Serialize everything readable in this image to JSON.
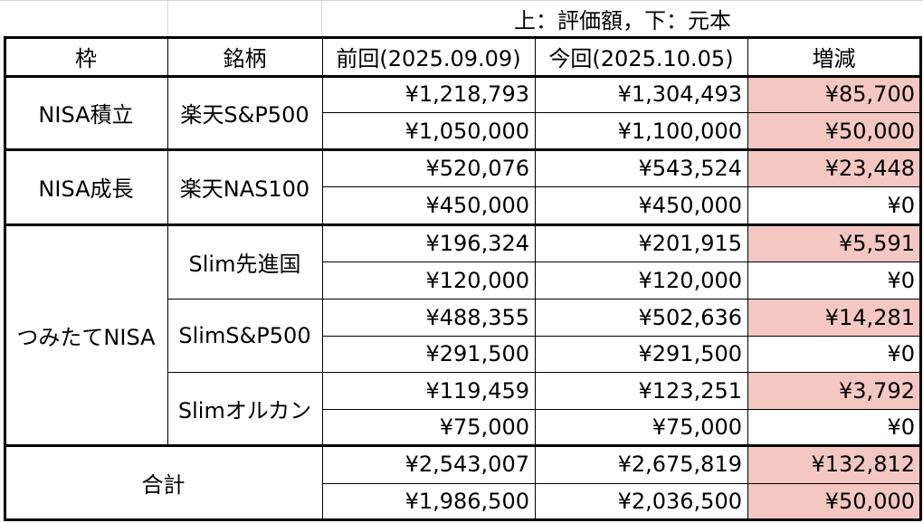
{
  "note": "上：評価額，下：元本",
  "headers": {
    "frame": "枠",
    "fund": "銘柄",
    "prev": "前回(2025.09.09)",
    "curr": "今回(2025.10.05)",
    "diff": "増減"
  },
  "colors": {
    "increase_fill": "#f4c7c3",
    "border": "#000000"
  },
  "groups": [
    {
      "frame": "NISA積立",
      "funds": [
        {
          "name": "楽天S&P500",
          "value": {
            "prev": "¥1,218,793",
            "curr": "¥1,304,493",
            "diff": "¥85,700"
          },
          "principal": {
            "prev": "¥1,050,000",
            "curr": "¥1,100,000",
            "diff": "¥50,000"
          }
        }
      ]
    },
    {
      "frame": "NISA成長",
      "funds": [
        {
          "name": "楽天NAS100",
          "value": {
            "prev": "¥520,076",
            "curr": "¥543,524",
            "diff": "¥23,448"
          },
          "principal": {
            "prev": "¥450,000",
            "curr": "¥450,000",
            "diff": "¥0"
          }
        }
      ]
    },
    {
      "frame": "つみたてNISA",
      "funds": [
        {
          "name": "Slim先進国",
          "value": {
            "prev": "¥196,324",
            "curr": "¥201,915",
            "diff": "¥5,591"
          },
          "principal": {
            "prev": "¥120,000",
            "curr": "¥120,000",
            "diff": "¥0"
          }
        },
        {
          "name": "SlimS&P500",
          "value": {
            "prev": "¥488,355",
            "curr": "¥502,636",
            "diff": "¥14,281"
          },
          "principal": {
            "prev": "¥291,500",
            "curr": "¥291,500",
            "diff": "¥0"
          }
        },
        {
          "name": "Slimオルカン",
          "value": {
            "prev": "¥119,459",
            "curr": "¥123,251",
            "diff": "¥3,792"
          },
          "principal": {
            "prev": "¥75,000",
            "curr": "¥75,000",
            "diff": "¥0"
          }
        }
      ]
    }
  ],
  "total": {
    "label": "合計",
    "value": {
      "prev": "¥2,543,007",
      "curr": "¥2,675,819",
      "diff": "¥132,812"
    },
    "principal": {
      "prev": "¥1,986,500",
      "curr": "¥2,036,500",
      "diff": "¥50,000"
    }
  }
}
